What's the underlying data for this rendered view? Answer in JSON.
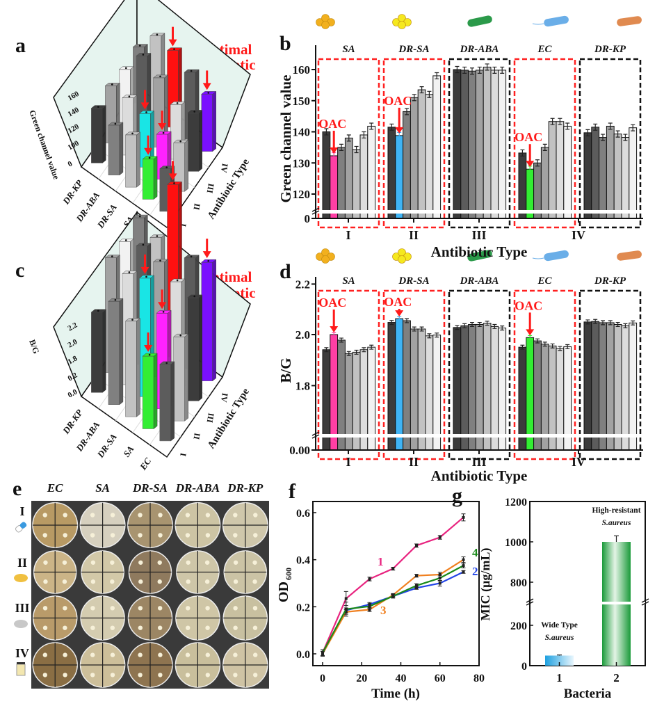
{
  "panel_letters": {
    "a": "a",
    "b": "b",
    "c": "c",
    "d": "d",
    "e": "e",
    "f": "f",
    "g": "g"
  },
  "annotations": {
    "optimal_line1": "Optimal",
    "optimal_line2": "antibiotic",
    "oac": "OAC"
  },
  "colors": {
    "highlight_pink": "#ff3fa4",
    "highlight_blue": "#3fb4f5",
    "highlight_green": "#33ee33",
    "highlight_red": "#ff1010",
    "highlight_cyan": "#19e5e5",
    "highlight_magenta": "#ff22ff",
    "highlight_purple": "#7a10ff",
    "red_box": "#ff2020",
    "black_box": "#111111",
    "wall": "#e6f4ef"
  },
  "bacteria_icons": [
    "coccus-cluster-orange",
    "coccus-cluster-yellow",
    "rod-green",
    "rod-blue-flagellated",
    "rod-orange"
  ],
  "chart_data": [
    {
      "id": "a",
      "type": "bar3d",
      "zlabel": "Green channel value",
      "xlabel": "Antibiotic Type",
      "zticks": [
        "0",
        "100",
        "120",
        "140",
        "160"
      ],
      "bacteria": [
        "DR-KP",
        "DR-ABA",
        "DR-SA",
        "SA",
        "EC"
      ],
      "antibiotics": [
        "I",
        "II",
        "III",
        "IV"
      ],
      "values": [
        [
          140,
          142,
          139,
          141
        ],
        [
          136,
          142,
          160,
          160
        ],
        [
          138,
          139,
          152,
          158
        ],
        [
          128,
          132,
          140,
          150
        ],
        [
          130,
          135,
          143,
          142
        ]
      ],
      "highlights": [
        {
          "bacteria": "SA",
          "antibiotic": "I",
          "color": "#33ee33"
        },
        {
          "bacteria": "SA",
          "antibiotic": "II",
          "color": "#ff22ff"
        },
        {
          "bacteria": "DR-SA",
          "antibiotic": "II",
          "color": "#19e5e5"
        },
        {
          "bacteria": "DR-SA",
          "antibiotic": "IV",
          "color": "#ff1010"
        },
        {
          "bacteria": "EC",
          "antibiotic": "IV",
          "color": "#7a10ff"
        }
      ]
    },
    {
      "id": "b",
      "type": "bar",
      "ylabel": "Green channel value",
      "xlabel": "Antibiotic Type",
      "yticks": [
        "0",
        "120",
        "130",
        "140",
        "150",
        "160"
      ],
      "ylim": [
        0,
        165
      ],
      "ybreak": [
        1,
        115
      ],
      "groups": [
        "SA",
        "DR-SA",
        "DR-ABA",
        "EC",
        "DR-KP"
      ],
      "group_box": [
        "red",
        "red",
        "black",
        "red",
        "black"
      ],
      "antibiotic_labels": [
        "I",
        "II",
        "III",
        "IV"
      ],
      "values": [
        [
          140,
          132.3,
          135,
          138,
          134.3,
          139,
          141.8
        ],
        [
          141.5,
          138.8,
          146.5,
          151,
          153.5,
          152,
          158
        ],
        [
          160,
          159.8,
          159.5,
          159.8,
          160.8,
          159.8,
          159.8
        ],
        [
          133.2,
          128,
          130,
          135,
          143.3,
          143.3,
          141.8
        ],
        [
          139.7,
          141.5,
          138.2,
          141.8,
          139.3,
          138.2,
          141.3
        ]
      ],
      "error": 1.0,
      "highlight_index": [
        1,
        1,
        null,
        1,
        null
      ],
      "highlight_colors": [
        "#ff3fa4",
        "#3fb4f5",
        null,
        "#33ee33",
        null
      ]
    },
    {
      "id": "c",
      "type": "bar3d",
      "zlabel": "B/G",
      "xlabel": "Antibiotic Type",
      "zticks": [
        "0.0",
        "0.2",
        "1.8",
        "2.0",
        "2.2"
      ],
      "bacteria": [
        "DR-KP",
        "DR-ABA",
        "DR-SA",
        "SA",
        "EC"
      ],
      "antibiotics": [
        "I",
        "II",
        "III",
        "IV"
      ],
      "values": [
        [
          1.96,
          2.05,
          2.04,
          2.05
        ],
        [
          2.02,
          2.04,
          2.06,
          2.03
        ],
        [
          2.0,
          2.06,
          2.05,
          2.2
        ],
        [
          1.94,
          2.0,
          2.03,
          2.04
        ],
        [
          1.95,
          1.97,
          2.02,
          2.06
        ]
      ],
      "highlights": [
        {
          "bacteria": "SA",
          "antibiotic": "I",
          "color": "#33ee33"
        },
        {
          "bacteria": "SA",
          "antibiotic": "II",
          "color": "#ff22ff"
        },
        {
          "bacteria": "DR-SA",
          "antibiotic": "II",
          "color": "#19e5e5"
        },
        {
          "bacteria": "DR-SA",
          "antibiotic": "IV",
          "color": "#ff1010"
        },
        {
          "bacteria": "EC",
          "antibiotic": "IV",
          "color": "#7a10ff"
        }
      ]
    },
    {
      "id": "d",
      "type": "bar",
      "ylabel": "B/G",
      "xlabel": "Antibiotic Type",
      "yticks": [
        "0.00",
        "1.8",
        "2.0",
        "2.2"
      ],
      "ylim": [
        0,
        2.2
      ],
      "ybreak": [
        0.01,
        1.55
      ],
      "groups": [
        "SA",
        "DR-SA",
        "DR-ABA",
        "EC",
        "DR-KP"
      ],
      "group_box": [
        "red",
        "red",
        "black",
        "red",
        "black"
      ],
      "antibiotic_labels": [
        "I",
        "II",
        "III",
        "IV"
      ],
      "values": [
        [
          1.94,
          2.0,
          1.978,
          1.925,
          1.93,
          1.94,
          1.95
        ],
        [
          2.048,
          2.063,
          2.055,
          2.022,
          2.022,
          1.995,
          1.998
        ],
        [
          2.028,
          2.035,
          2.04,
          2.04,
          2.045,
          2.032,
          2.026
        ],
        [
          1.95,
          1.988,
          1.975,
          1.962,
          1.955,
          1.945,
          1.952
        ],
        [
          2.05,
          2.052,
          2.047,
          2.047,
          2.04,
          2.035,
          2.046
        ]
      ],
      "error": 0.008,
      "highlight_index": [
        1,
        1,
        null,
        1,
        null
      ],
      "highlight_colors": [
        "#ff3fa4",
        "#3fb4f5",
        null,
        "#33ee33",
        null
      ]
    },
    {
      "id": "e",
      "type": "image-grid",
      "columns": [
        "EC",
        "SA",
        "DR-SA",
        "DR-ABA",
        "DR-KP"
      ],
      "rows": [
        "I",
        "II",
        "III",
        "IV"
      ],
      "row_icons": [
        "capsule-icon",
        "yellow-tablet-icon",
        "grey-tablet-icon",
        "vial-icon"
      ]
    },
    {
      "id": "f",
      "type": "line",
      "xlabel": "Time (h)",
      "ylabel": "OD",
      "ylabel_sub": "600",
      "xlim": [
        -3,
        80
      ],
      "ylim": [
        -0.05,
        0.65
      ],
      "xticks": [
        "0",
        "20",
        "40",
        "60",
        "80"
      ],
      "yticks": [
        "0.0",
        "0.2",
        "0.4",
        "0.6"
      ],
      "x": [
        0,
        12,
        24,
        36,
        48,
        60,
        72
      ],
      "series": [
        {
          "name": "1",
          "color": "#e8237f",
          "values": [
            0.005,
            0.235,
            0.318,
            0.362,
            0.46,
            0.495,
            0.58
          ],
          "error": [
            0.012,
            0.03,
            0.008,
            0.006,
            0.007,
            0.008,
            0.015
          ]
        },
        {
          "name": "2",
          "color": "#2244e6",
          "values": [
            0.0,
            0.185,
            0.21,
            0.245,
            0.28,
            0.3,
            0.348
          ],
          "error": [
            0.01,
            0.01,
            0.008,
            0.006,
            0.006,
            0.012,
            0.006
          ]
        },
        {
          "name": "3",
          "color": "#f08020",
          "values": [
            0.0,
            0.178,
            0.188,
            0.25,
            0.332,
            0.337,
            0.4
          ],
          "error": [
            0.01,
            0.01,
            0.008,
            0.006,
            0.006,
            0.01,
            0.012
          ]
        },
        {
          "name": "4",
          "color": "#1a8a1a",
          "values": [
            0.005,
            0.19,
            0.202,
            0.245,
            0.29,
            0.322,
            0.375
          ],
          "error": [
            0.012,
            0.03,
            0.01,
            0.008,
            0.008,
            0.012,
            0.01
          ]
        }
      ]
    },
    {
      "id": "g",
      "type": "bar",
      "xlabel": "Bacteria",
      "ylabel": "MIC (μg/mL)",
      "yticks": [
        "0",
        "200",
        "800",
        "1000",
        "1200"
      ],
      "ylim": [
        0,
        1200
      ],
      "ybreak": [
        300,
        700
      ],
      "categories": [
        "1",
        "2"
      ],
      "values": [
        50,
        1000
      ],
      "error": [
        3,
        30
      ],
      "bar_labels": [
        [
          "Wide Type",
          "S.aureus"
        ],
        [
          "High-resistant",
          "S.aureus"
        ]
      ],
      "colors": [
        "#1ea0e0",
        "#1a9a3a"
      ]
    }
  ]
}
